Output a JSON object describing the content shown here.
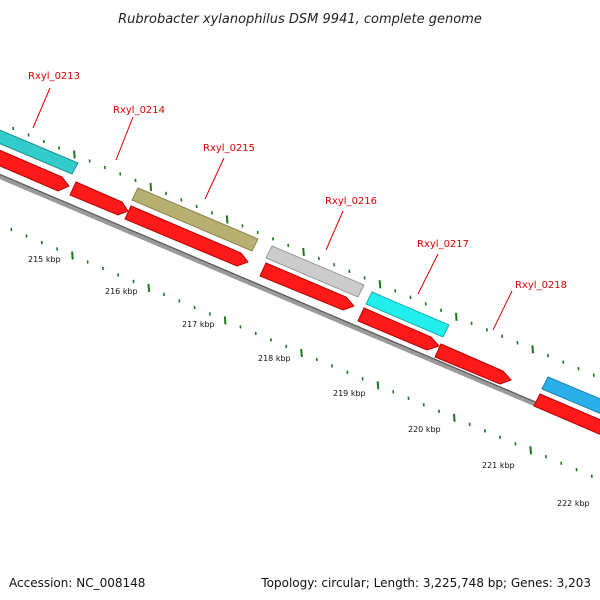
{
  "title": "Rubrobacter xylanophilus DSM 9941, complete genome",
  "footer": {
    "accession": "Accession: NC_008148",
    "summary": "Topology: circular; Length: 3,225,748 bp; Genes: 3,203"
  },
  "colors": {
    "cds": "#ff1a1a",
    "cyan_gene": "#33cccc",
    "olive_gene": "#b8b070",
    "grey_gene": "#c8c8c8",
    "bright_cyan_gene": "#22eeee",
    "blue_gene": "#2ab0e8",
    "label": "#dd0000",
    "backbone": "#888888",
    "ticks": "#1a7a1a"
  },
  "gene_labels": [
    {
      "text": "Rxyl_0213"
    },
    {
      "text": "Rxyl_0214"
    },
    {
      "text": "Rxyl_0215"
    },
    {
      "text": "Rxyl_0216"
    },
    {
      "text": "Rxyl_0217"
    },
    {
      "text": "Rxyl_0218"
    }
  ],
  "kbp_labels": [
    {
      "text": "215 kbp"
    },
    {
      "text": "216 kbp"
    },
    {
      "text": "217 kbp"
    },
    {
      "text": "218 kbp"
    },
    {
      "text": "219 kbp"
    },
    {
      "text": "220 kbp"
    },
    {
      "text": "221 kbp"
    },
    {
      "text": "222 kbp"
    }
  ]
}
